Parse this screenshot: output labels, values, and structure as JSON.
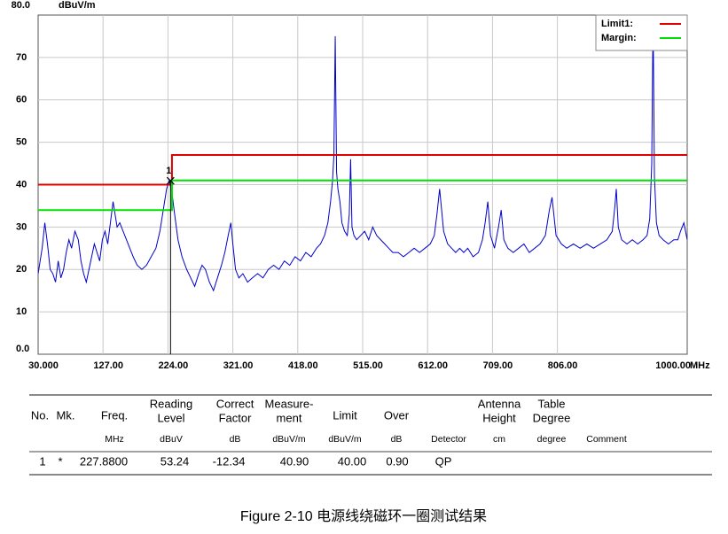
{
  "chart_data": {
    "type": "line",
    "y_unit": "dBuV/m",
    "x_unit": "MHz",
    "xlim": [
      30,
      1000
    ],
    "ylim": [
      0,
      80
    ],
    "xticks": [
      {
        "value": 30,
        "label": "30.000"
      },
      {
        "value": 127,
        "label": "127.00"
      },
      {
        "value": 224,
        "label": "224.00"
      },
      {
        "value": 321,
        "label": "321.00"
      },
      {
        "value": 418,
        "label": "418.00"
      },
      {
        "value": 515,
        "label": "515.00"
      },
      {
        "value": 612,
        "label": "612.00"
      },
      {
        "value": 709,
        "label": "709.00"
      },
      {
        "value": 806,
        "label": "806.00"
      },
      {
        "value": 1000,
        "label": "1000.00"
      }
    ],
    "yticks": [
      {
        "value": 0,
        "label": "0.0"
      },
      10,
      20,
      30,
      40,
      50,
      60,
      70,
      {
        "value": 80,
        "label": "80.0"
      }
    ],
    "grid": true,
    "series": [
      {
        "color": "#0000cc",
        "x": [
          30,
          33,
          36,
          40,
          44,
          48,
          52,
          56,
          60,
          64,
          68,
          72,
          76,
          80,
          85,
          90,
          94,
          98,
          102,
          106,
          110,
          114,
          118,
          122,
          126,
          130,
          134,
          138,
          142,
          145,
          148,
          152,
          157,
          162,
          167,
          172,
          178,
          185,
          192,
          199,
          206,
          212,
          217,
          222,
          226,
          230,
          234,
          239,
          245,
          252,
          258,
          264,
          270,
          275,
          280,
          286,
          292,
          298,
          304,
          309,
          314,
          318,
          321,
          325,
          330,
          336,
          343,
          350,
          358,
          366,
          374,
          382,
          390,
          398,
          406,
          414,
          422,
          430,
          438,
          446,
          452,
          458,
          463,
          467,
          470,
          472,
          474,
          476,
          478,
          481,
          484,
          488,
          492,
          495,
          497,
          499,
          502,
          506,
          512,
          518,
          524,
          530,
          536,
          542,
          548,
          554,
          560,
          568,
          576,
          584,
          592,
          600,
          608,
          616,
          622,
          626,
          630,
          636,
          642,
          648,
          654,
          660,
          666,
          672,
          680,
          688,
          694,
          698,
          702,
          706,
          712,
          718,
          722,
          726,
          732,
          740,
          748,
          756,
          764,
          772,
          780,
          788,
          794,
          798,
          804,
          812,
          820,
          830,
          840,
          850,
          860,
          870,
          880,
          888,
          892,
          894,
          897,
          902,
          910,
          918,
          926,
          934,
          940,
          944,
          947,
          949,
          951,
          954,
          958,
          964,
          972,
          980,
          986,
          990,
          995,
          1000
        ],
        "values": [
          19,
          22,
          25,
          31,
          26,
          20,
          19,
          17,
          22,
          18,
          20,
          24,
          27,
          25,
          29,
          27,
          22,
          19,
          17,
          20,
          23,
          26,
          24,
          22,
          27,
          29,
          26,
          31,
          36,
          33,
          30,
          31,
          29,
          27,
          25,
          23,
          21,
          20,
          21,
          23,
          25,
          29,
          34,
          39,
          41,
          38,
          33,
          27,
          23,
          20,
          18,
          16,
          19,
          21,
          20,
          17,
          15,
          18,
          21,
          24,
          28,
          31,
          26,
          20,
          18,
          19,
          17,
          18,
          19,
          18,
          20,
          21,
          20,
          22,
          21,
          23,
          22,
          24,
          23,
          25,
          26,
          28,
          31,
          36,
          41,
          47,
          75,
          43,
          39,
          36,
          31,
          29,
          28,
          33,
          46,
          30,
          28,
          27,
          28,
          29,
          27,
          30,
          28,
          27,
          26,
          25,
          24,
          24,
          23,
          24,
          25,
          24,
          25,
          26,
          28,
          33,
          39,
          29,
          26,
          25,
          24,
          25,
          24,
          25,
          23,
          24,
          27,
          31,
          36,
          28,
          25,
          30,
          34,
          27,
          25,
          24,
          25,
          26,
          24,
          25,
          26,
          28,
          34,
          37,
          28,
          26,
          25,
          26,
          25,
          26,
          25,
          26,
          27,
          29,
          35,
          39,
          30,
          27,
          26,
          27,
          26,
          27,
          28,
          32,
          45,
          80,
          42,
          31,
          28,
          27,
          26,
          27,
          27,
          29,
          31,
          27
        ]
      },
      {
        "name": "Limit1:",
        "color": "#e00000",
        "x": [
          30,
          230,
          230,
          1000
        ],
        "values": [
          40,
          40,
          47,
          47
        ]
      },
      {
        "name": "Margin:",
        "color": "#00e000",
        "x": [
          30,
          230,
          230,
          1000
        ],
        "values": [
          34,
          34,
          41,
          41
        ]
      }
    ],
    "marker": {
      "label": "1",
      "x": 227.88,
      "y": 40.9
    },
    "legend": "upper right"
  },
  "table": {
    "columns": [
      {
        "label": [
          "No."
        ]
      },
      {
        "label": [
          "Mk."
        ]
      },
      {
        "label": [
          "Freq."
        ],
        "unit": "MHz"
      },
      {
        "label": [
          "Reading",
          "Level"
        ],
        "unit": "dBuV"
      },
      {
        "label": [
          "Correct",
          "Factor"
        ],
        "unit": "dB"
      },
      {
        "label": [
          "Measure-",
          "ment"
        ],
        "unit": "dBuV/m"
      },
      {
        "label": [
          "Limit"
        ],
        "unit": "dBuV/m"
      },
      {
        "label": [
          "Over"
        ],
        "unit": "dB"
      },
      {
        "unit": "Detector"
      },
      {
        "label": [
          "Antenna",
          "Height"
        ],
        "unit": "cm"
      },
      {
        "label": [
          "Table",
          "Degree"
        ],
        "unit": "degree"
      },
      {
        "unit": "Comment"
      }
    ],
    "rows": [
      [
        "1",
        "*",
        "227.8800",
        "53.24",
        "-12.34",
        "40.90",
        "40.00",
        "0.90",
        "QP"
      ]
    ]
  },
  "caption": "Figure 2-10  电源线绕磁环一圈测试结果"
}
